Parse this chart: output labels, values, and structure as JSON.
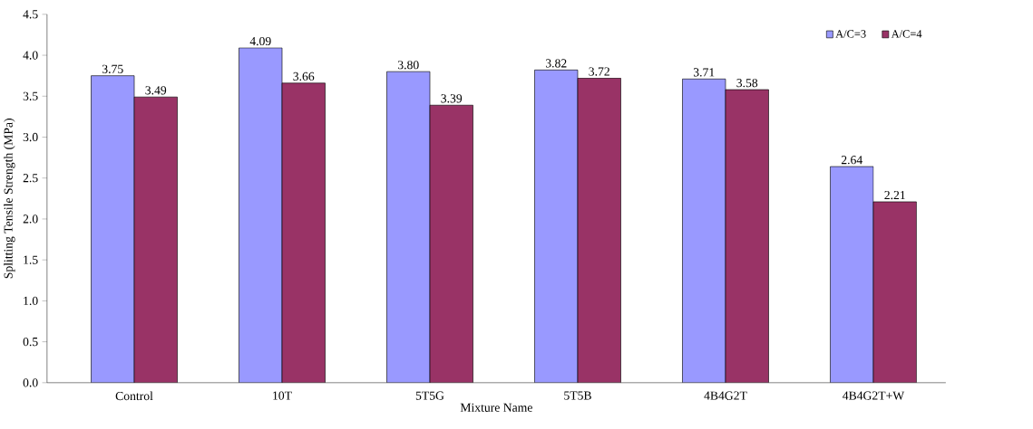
{
  "chart_data": {
    "type": "bar",
    "xlabel": "Mixture Name",
    "ylabel": "Splitting Tensile Strength (MPa)",
    "categories": [
      "Control",
      "10T",
      "5T5G",
      "5T5B",
      "4B4G2T",
      "4B4G2T+W"
    ],
    "series": [
      {
        "name": "A/C=3",
        "color": "#9999ff",
        "values": [
          3.75,
          4.09,
          3.8,
          3.82,
          3.71,
          2.64
        ],
        "value_labels": [
          "3.75",
          "4.09",
          "3.80",
          "3.82",
          "3.71",
          "2.64"
        ]
      },
      {
        "name": "A/C=4",
        "color": "#993366",
        "values": [
          3.49,
          3.66,
          3.39,
          3.72,
          3.58,
          2.21
        ],
        "value_labels": [
          "3.49",
          "3.66",
          "3.39",
          "3.72",
          "3.58",
          "2.21"
        ]
      }
    ],
    "ylim": [
      0,
      4.5
    ],
    "yticks": [
      {
        "value": 0,
        "label": "0.0"
      },
      {
        "value": 0.5,
        "label": "0.5"
      },
      {
        "value": 1,
        "label": "1.0"
      },
      {
        "value": 1.5,
        "label": "1.5"
      },
      {
        "value": 2,
        "label": "2.0"
      },
      {
        "value": 2.5,
        "label": "2.5"
      },
      {
        "value": 3,
        "label": "3.0"
      },
      {
        "value": 3.5,
        "label": "3.5"
      },
      {
        "value": 4,
        "label": "4.0"
      },
      {
        "value": 4.5,
        "label": "4.5"
      }
    ],
    "legend": "top right",
    "grid": false
  }
}
